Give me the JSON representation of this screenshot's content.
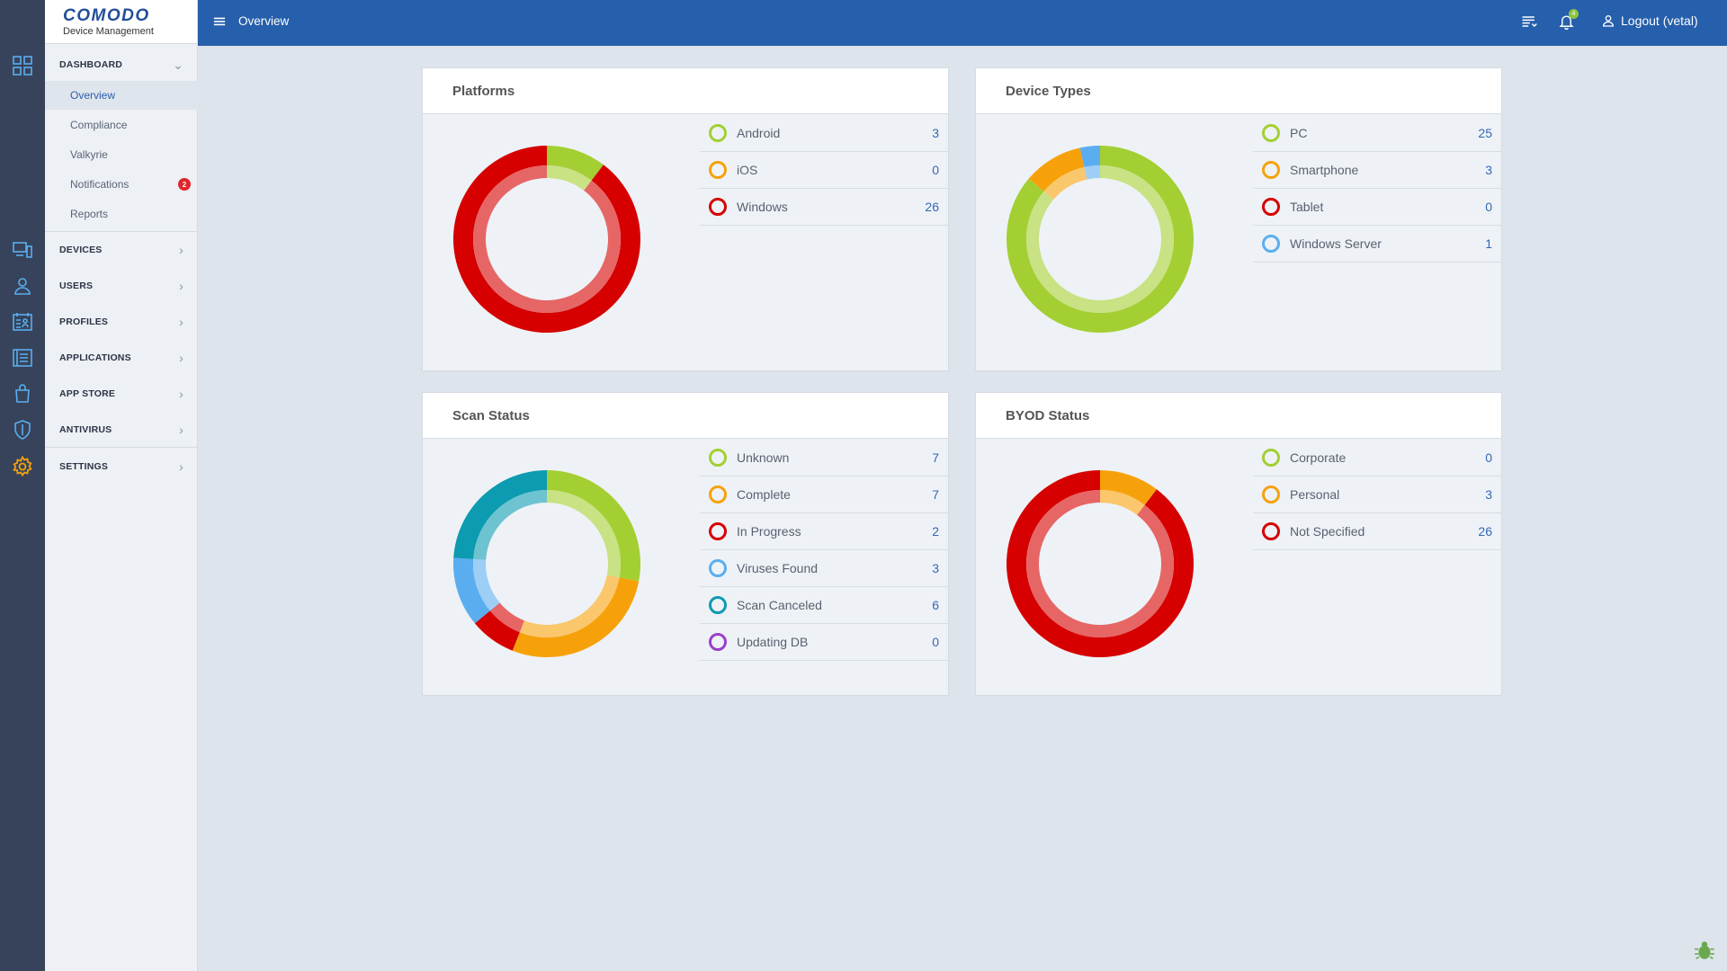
{
  "app": {
    "logo_title": "COMODO",
    "logo_sub": "Device Management"
  },
  "topbar": {
    "page_title": "Overview",
    "logout_label": "Logout (vetal)",
    "notification_count": "4"
  },
  "sidebar": {
    "dashboard": "DASHBOARD",
    "sub_items": [
      {
        "label": "Overview"
      },
      {
        "label": "Compliance"
      },
      {
        "label": "Valkyrie"
      },
      {
        "label": "Notifications",
        "badge": "2"
      },
      {
        "label": "Reports"
      }
    ],
    "sections": [
      {
        "label": "DEVICES"
      },
      {
        "label": "USERS"
      },
      {
        "label": "PROFILES"
      },
      {
        "label": "APPLICATIONS"
      },
      {
        "label": "APP STORE"
      },
      {
        "label": "ANTIVIRUS"
      },
      {
        "label": "SETTINGS"
      }
    ]
  },
  "cards": [
    {
      "title": "Platforms",
      "items": [
        {
          "label": "Android",
          "count": "3",
          "color": "#a3cf32"
        },
        {
          "label": "iOS",
          "count": "0",
          "color": "#f7a10a"
        },
        {
          "label": "Windows",
          "count": "26",
          "color": "#d60000"
        }
      ]
    },
    {
      "title": "Device Types",
      "items": [
        {
          "label": "PC",
          "count": "25",
          "color": "#a3cf32"
        },
        {
          "label": "Smartphone",
          "count": "3",
          "color": "#f7a10a"
        },
        {
          "label": "Tablet",
          "count": "0",
          "color": "#d60000"
        },
        {
          "label": "Windows Server",
          "count": "1",
          "color": "#5aaef0"
        }
      ]
    },
    {
      "title": "Scan Status",
      "items": [
        {
          "label": "Unknown",
          "count": "7",
          "color": "#a3cf32"
        },
        {
          "label": "Complete",
          "count": "7",
          "color": "#f7a10a"
        },
        {
          "label": "In Progress",
          "count": "2",
          "color": "#d60000"
        },
        {
          "label": "Viruses Found",
          "count": "3",
          "color": "#5aaef0"
        },
        {
          "label": "Scan Canceled",
          "count": "6",
          "color": "#0c9bb0"
        },
        {
          "label": "Updating DB",
          "count": "0",
          "color": "#9b3fc9"
        }
      ]
    },
    {
      "title": "BYOD Status",
      "items": [
        {
          "label": "Corporate",
          "count": "0",
          "color": "#a3cf32"
        },
        {
          "label": "Personal",
          "count": "3",
          "color": "#f7a10a"
        },
        {
          "label": "Not Specified",
          "count": "26",
          "color": "#d60000"
        }
      ]
    }
  ],
  "chart_data": [
    {
      "type": "pie",
      "categories": [
        "Android",
        "iOS",
        "Windows"
      ],
      "values": [
        3,
        0,
        26
      ]
    },
    {
      "type": "pie",
      "categories": [
        "PC",
        "Smartphone",
        "Tablet",
        "Windows Server"
      ],
      "values": [
        25,
        3,
        0,
        1
      ]
    },
    {
      "type": "pie",
      "categories": [
        "Unknown",
        "Complete",
        "In Progress",
        "Viruses Found",
        "Scan Canceled",
        "Updating DB"
      ],
      "values": [
        7,
        7,
        2,
        3,
        6,
        0
      ]
    },
    {
      "type": "pie",
      "categories": [
        "Corporate",
        "Personal",
        "Not Specified"
      ],
      "values": [
        0,
        3,
        26
      ]
    }
  ]
}
